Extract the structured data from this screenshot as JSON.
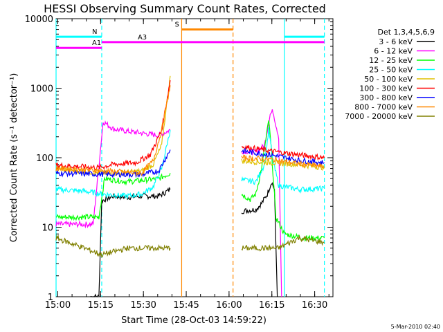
{
  "chart_data": {
    "type": "line",
    "title": "HESSI Observing Summary Count Rates, Corrected",
    "xlabel": "Start Time (28-Oct-03 14:59:22)",
    "ylabel": "Corrected Count Rate (s⁻¹ detector⁻¹)",
    "yscale": "log",
    "ylim": [
      1,
      10000
    ],
    "xlim_minutes": [
      0,
      97
    ],
    "x_tick_labels": [
      "15:00",
      "15:15",
      "15:30",
      "15:45",
      "16:00",
      "16:15",
      "16:30"
    ],
    "x_tick_minutes": [
      0.6,
      15.6,
      30.6,
      45.6,
      60.6,
      75.6,
      90.6
    ],
    "y_tick_labels": [
      "1",
      "10",
      "100",
      "1000",
      "10000"
    ],
    "y_tick_values": [
      1,
      10,
      100,
      1000,
      10000
    ],
    "timestamp": "5-Mar-2010 02:40",
    "legend": {
      "title": "Det 1,3,4,5,6,9",
      "placement": "right"
    },
    "series": [
      {
        "name": "3 - 6 keV",
        "color": "#000000",
        "seg1": [
          [
            12,
            1
          ],
          [
            15,
            1
          ],
          [
            16,
            24
          ],
          [
            20,
            28
          ],
          [
            25,
            27
          ],
          [
            30,
            28
          ],
          [
            36,
            28
          ],
          [
            40,
            35
          ]
        ],
        "seg2": [
          [
            65,
            17
          ],
          [
            70,
            18
          ],
          [
            72,
            22
          ],
          [
            74,
            30
          ],
          [
            75.5,
            45
          ],
          [
            76.5,
            35
          ],
          [
            77.5,
            1
          ]
        ]
      },
      {
        "name": "6 - 12 keV",
        "color": "#ff00ff",
        "seg1": [
          [
            0,
            11
          ],
          [
            13,
            11
          ],
          [
            16.5,
            330
          ],
          [
            20,
            260
          ],
          [
            25,
            240
          ],
          [
            32,
            220
          ],
          [
            36,
            210
          ],
          [
            40,
            250
          ]
        ],
        "seg2": [
          [
            65,
            125
          ],
          [
            70,
            120
          ],
          [
            73,
            150
          ],
          [
            75,
            420
          ],
          [
            76,
            470
          ],
          [
            77,
            300
          ],
          [
            78,
            200
          ],
          [
            79,
            1
          ]
        ]
      },
      {
        "name": "12 - 25 keV",
        "color": "#00ff00",
        "seg1": [
          [
            0,
            14
          ],
          [
            15,
            14
          ],
          [
            17,
            50
          ],
          [
            25,
            45
          ],
          [
            32,
            48
          ],
          [
            36,
            50
          ],
          [
            40,
            60
          ]
        ],
        "seg2": [
          [
            65,
            30
          ],
          [
            68,
            25
          ],
          [
            70,
            30
          ],
          [
            72,
            70
          ],
          [
            73.5,
            180
          ],
          [
            74.5,
            350
          ],
          [
            75.5,
            120
          ],
          [
            77,
            14
          ],
          [
            80,
            8
          ],
          [
            87,
            7
          ],
          [
            94,
            7
          ]
        ]
      },
      {
        "name": "25 - 50 keV",
        "color": "#00ffff",
        "seg1": [
          [
            0,
            35
          ],
          [
            10,
            33
          ],
          [
            16,
            30
          ],
          [
            25,
            28
          ],
          [
            30,
            30
          ],
          [
            34,
            38
          ],
          [
            37,
            70
          ],
          [
            40,
            250
          ]
        ],
        "seg2": [
          [
            65,
            48
          ],
          [
            70,
            45
          ],
          [
            73,
            80
          ],
          [
            74.5,
            250
          ],
          [
            76,
            90
          ],
          [
            78,
            40
          ],
          [
            85,
            35
          ],
          [
            94,
            36
          ]
        ]
      },
      {
        "name": "50 - 100 keV",
        "color": "#e0c000",
        "seg1": [
          [
            0,
            70
          ],
          [
            16,
            60
          ],
          [
            22,
            60
          ],
          [
            30,
            64
          ],
          [
            34,
            80
          ],
          [
            37,
            150
          ],
          [
            40,
            1500
          ]
        ],
        "seg2": [
          [
            65,
            90
          ],
          [
            75,
            85
          ],
          [
            85,
            80
          ],
          [
            94,
            72
          ]
        ]
      },
      {
        "name": "100 - 300 keV",
        "color": "#ff0000",
        "seg1": [
          [
            0,
            78
          ],
          [
            15,
            72
          ],
          [
            20,
            80
          ],
          [
            28,
            85
          ],
          [
            33,
            110
          ],
          [
            37,
            250
          ],
          [
            40,
            1300
          ]
        ],
        "seg2": [
          [
            65,
            145
          ],
          [
            75,
            125
          ],
          [
            85,
            110
          ],
          [
            94,
            100
          ]
        ]
      },
      {
        "name": "300 - 800 keV",
        "color": "#0000ff",
        "seg1": [
          [
            0,
            60
          ],
          [
            16,
            58
          ],
          [
            30,
            57
          ],
          [
            36,
            65
          ],
          [
            40,
            130
          ]
        ],
        "seg2": [
          [
            65,
            125
          ],
          [
            75,
            110
          ],
          [
            85,
            92
          ],
          [
            94,
            85
          ]
        ]
      },
      {
        "name": "800 - 7000 keV",
        "color": "#ff8800",
        "seg1": [
          [
            0,
            70
          ],
          [
            16,
            65
          ],
          [
            30,
            60
          ],
          [
            34,
            90
          ],
          [
            37,
            250
          ],
          [
            40,
            1100
          ]
        ],
        "seg2": [
          [
            65,
            100
          ],
          [
            75,
            95
          ],
          [
            85,
            82
          ],
          [
            94,
            74
          ]
        ]
      },
      {
        "name": "7000 - 20000 keV",
        "color": "#808000",
        "seg1": [
          [
            0,
            7
          ],
          [
            10,
            5
          ],
          [
            16,
            4
          ],
          [
            25,
            5
          ],
          [
            35,
            5
          ],
          [
            40,
            5
          ]
        ],
        "seg2": [
          [
            65,
            5
          ],
          [
            75,
            5
          ],
          [
            78,
            5
          ],
          [
            85,
            7
          ],
          [
            94,
            6
          ]
        ]
      }
    ],
    "annotations": [
      {
        "label": "N",
        "color": "#00ffff",
        "level": 5500,
        "span": [
          0,
          16
        ]
      },
      {
        "label": "",
        "color": "#00ffff",
        "level": 5500,
        "span": [
          80,
          94
        ]
      },
      {
        "label": "A1",
        "color": "#ff00ff",
        "level": 3800,
        "span": [
          0,
          16
        ]
      },
      {
        "label": "A3",
        "color": "#ff00ff",
        "level": 4600,
        "span": [
          16,
          94
        ]
      },
      {
        "label": "S",
        "color": "#ff8800",
        "level": 7000,
        "span": [
          44,
          62
        ]
      }
    ],
    "vertical_markers": [
      {
        "color": "#00ffff",
        "style": "solid",
        "minute": 0
      },
      {
        "color": "#00ffff",
        "style": "dashed",
        "minute": 16
      },
      {
        "color": "#ff8800",
        "style": "solid",
        "minute": 44
      },
      {
        "color": "#ff8800",
        "style": "dashed",
        "minute": 62
      },
      {
        "color": "#00ffff",
        "style": "solid",
        "minute": 80
      },
      {
        "color": "#00ffff",
        "style": "dashed",
        "minute": 94
      }
    ]
  }
}
